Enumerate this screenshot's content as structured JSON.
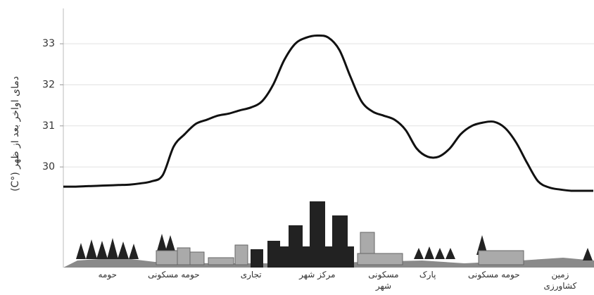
{
  "chart_data": {
    "type": "line",
    "y_label": "دمای اواخر بعد از ظهر (°C)",
    "categories": [
      null,
      null,
      null,
      null,
      "حومه",
      null,
      null,
      null,
      null,
      null,
      "حومه مسکونی",
      null,
      null,
      null,
      null,
      null,
      null,
      "تجاری",
      null,
      null,
      null,
      null,
      null,
      "مرکز شهر",
      null,
      null,
      null,
      null,
      null,
      "مسکونی شهر",
      null,
      null,
      null,
      "پارک",
      null,
      null,
      null,
      null,
      null,
      "حومه مسکونی",
      null,
      null,
      null,
      null,
      null,
      "زمین کشاورزی",
      null,
      null,
      null
    ],
    "values": [
      29.52,
      29.52,
      29.53,
      29.54,
      29.55,
      29.56,
      29.57,
      29.6,
      29.65,
      29.8,
      30.5,
      30.8,
      31.05,
      31.15,
      31.25,
      31.3,
      31.38,
      31.45,
      31.6,
      32.0,
      32.6,
      33.0,
      33.15,
      33.2,
      33.15,
      32.85,
      32.2,
      31.6,
      31.35,
      31.25,
      31.15,
      30.9,
      30.45,
      30.25,
      30.25,
      30.45,
      30.8,
      31.0,
      31.08,
      31.1,
      30.95,
      30.6,
      30.1,
      29.65,
      29.5,
      29.45,
      29.42,
      29.42,
      29.42
    ],
    "color": "#111111",
    "ylim": [
      27.55,
      33.86
    ],
    "yticks": [
      30,
      31,
      32,
      33
    ],
    "grid": true
  }
}
